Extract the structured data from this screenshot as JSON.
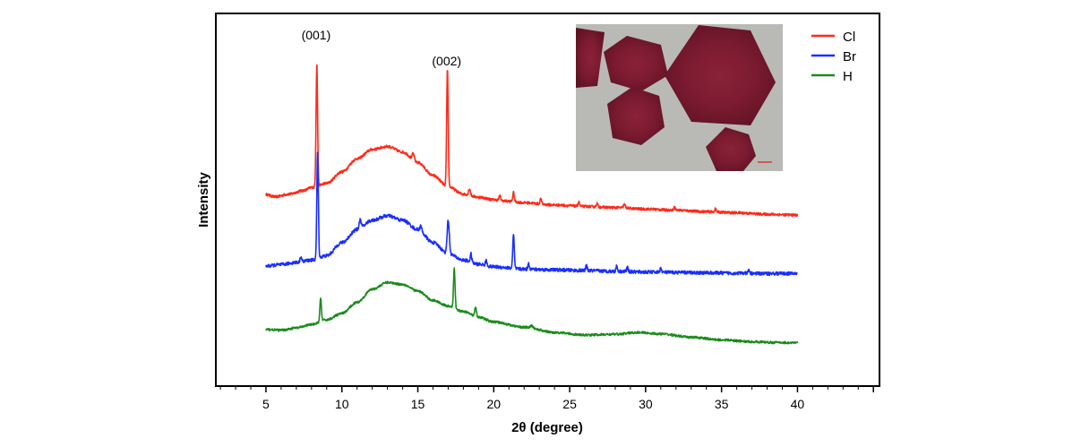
{
  "chart_data": {
    "type": "line",
    "title": "",
    "xlabel": "2θ (degree)",
    "ylabel": "Intensity",
    "xlim": [
      1.7,
      45.4
    ],
    "ylim": [
      0,
      100
    ],
    "x_ticks": [
      5,
      10,
      15,
      20,
      25,
      30,
      35,
      40
    ],
    "x_tick_labels": [
      "5",
      "10",
      "15",
      "20",
      "25",
      "30",
      "35",
      "40"
    ],
    "y_ticks_shown": false,
    "grid": false,
    "legend_position": "top-right",
    "annotations": [
      {
        "text": "(001)",
        "x": 8.3,
        "y": 93
      },
      {
        "text": "(002)",
        "x": 16.9,
        "y": 86
      }
    ],
    "inset": {
      "content": "optical micrograph of dark red hexagonal flakes on a grey background"
    },
    "series": [
      {
        "name": "Cl",
        "color": "#ff2a1a",
        "noise": 0.35,
        "points": [
          [
            5,
            51.4
          ],
          [
            5.6,
            50.8
          ],
          [
            6.5,
            51.5
          ],
          [
            7.5,
            52.5
          ],
          [
            8,
            53.3
          ],
          [
            9,
            54.4
          ],
          [
            10,
            57.5
          ],
          [
            11,
            61
          ],
          [
            12,
            63.5
          ],
          [
            13,
            64.3
          ],
          [
            14,
            62.8
          ],
          [
            15,
            60
          ],
          [
            16,
            56.5
          ],
          [
            17,
            53.5
          ],
          [
            18,
            51.5
          ],
          [
            19,
            50.7
          ],
          [
            20,
            50
          ],
          [
            21,
            49.6
          ],
          [
            22,
            49.2
          ],
          [
            24,
            48.6
          ],
          [
            26,
            48.2
          ],
          [
            28,
            47.9
          ],
          [
            30,
            47.5
          ],
          [
            32,
            47.2
          ],
          [
            34,
            46.8
          ],
          [
            36,
            46.5
          ],
          [
            38,
            46.1
          ],
          [
            40,
            45.9
          ]
        ],
        "peaks": [
          [
            8.35,
            33,
            0.05
          ],
          [
            16.95,
            31.5,
            0.05
          ],
          [
            14.7,
            1.8,
            0.07
          ],
          [
            18.4,
            1.8,
            0.06
          ],
          [
            20.4,
            1.2,
            0.05
          ],
          [
            21.3,
            2.4,
            0.05
          ],
          [
            23.1,
            1.4,
            0.05
          ],
          [
            25.6,
            1.2,
            0.05
          ],
          [
            26.8,
            0.9,
            0.05
          ],
          [
            28.6,
            0.9,
            0.06
          ],
          [
            31.9,
            0.8,
            0.05
          ],
          [
            34.6,
            0.8,
            0.05
          ]
        ]
      },
      {
        "name": "Br",
        "color": "#1a2eff",
        "noise": 0.45,
        "points": [
          [
            5,
            32.2
          ],
          [
            6,
            32.6
          ],
          [
            7,
            33.2
          ],
          [
            8,
            33.8
          ],
          [
            9,
            35
          ],
          [
            10,
            38.5
          ],
          [
            11,
            42
          ],
          [
            12,
            44.5
          ],
          [
            13,
            45.7
          ],
          [
            14,
            44.5
          ],
          [
            15,
            42
          ],
          [
            16,
            38.5
          ],
          [
            17,
            35.5
          ],
          [
            18,
            33.8
          ],
          [
            19,
            32.7
          ],
          [
            20,
            32
          ],
          [
            22,
            31.4
          ],
          [
            24,
            31.2
          ],
          [
            26,
            31
          ],
          [
            28,
            30.8
          ],
          [
            30,
            30.6
          ],
          [
            32,
            30.5
          ],
          [
            34,
            30.4
          ],
          [
            36,
            30.3
          ],
          [
            38,
            30.2
          ],
          [
            40,
            30.2
          ]
        ],
        "peaks": [
          [
            8.4,
            28.5,
            0.05
          ],
          [
            7.3,
            1.4,
            0.05
          ],
          [
            11.2,
            2.3,
            0.07
          ],
          [
            15.2,
            1.3,
            0.06
          ],
          [
            17,
            9,
            0.07
          ],
          [
            18.5,
            2.2,
            0.05
          ],
          [
            19.5,
            1.3,
            0.05
          ],
          [
            21.3,
            9,
            0.05
          ],
          [
            22.3,
            1.4,
            0.05
          ],
          [
            26.1,
            1.3,
            0.05
          ],
          [
            28.1,
            1.4,
            0.05
          ],
          [
            28.8,
            1.2,
            0.05
          ],
          [
            31,
            1.1,
            0.05
          ],
          [
            36.8,
            0.8,
            0.05
          ]
        ]
      },
      {
        "name": "H",
        "color": "#1a8c1a",
        "noise": 0.3,
        "points": [
          [
            5,
            15.2
          ],
          [
            6,
            15
          ],
          [
            7,
            15.6
          ],
          [
            8,
            16.5
          ],
          [
            9,
            17.8
          ],
          [
            10,
            19.5
          ],
          [
            11,
            22.5
          ],
          [
            12,
            26
          ],
          [
            13,
            27.8
          ],
          [
            14,
            27.3
          ],
          [
            15,
            25.5
          ],
          [
            16,
            23
          ],
          [
            17,
            21.5
          ],
          [
            18,
            20
          ],
          [
            19,
            18.5
          ],
          [
            20,
            17.2
          ],
          [
            22,
            15.8
          ],
          [
            24,
            14.4
          ],
          [
            26,
            13.7
          ],
          [
            28,
            13.9
          ],
          [
            29.5,
            14.4
          ],
          [
            31,
            14
          ],
          [
            33,
            13.1
          ],
          [
            35,
            12.4
          ],
          [
            37,
            11.9
          ],
          [
            38.5,
            11.7
          ],
          [
            40,
            11.6
          ]
        ],
        "peaks": [
          [
            8.6,
            6.2,
            0.05
          ],
          [
            17.4,
            10.5,
            0.05
          ],
          [
            18.8,
            2.6,
            0.06
          ],
          [
            22.5,
            0.6,
            0.08
          ]
        ]
      }
    ]
  }
}
